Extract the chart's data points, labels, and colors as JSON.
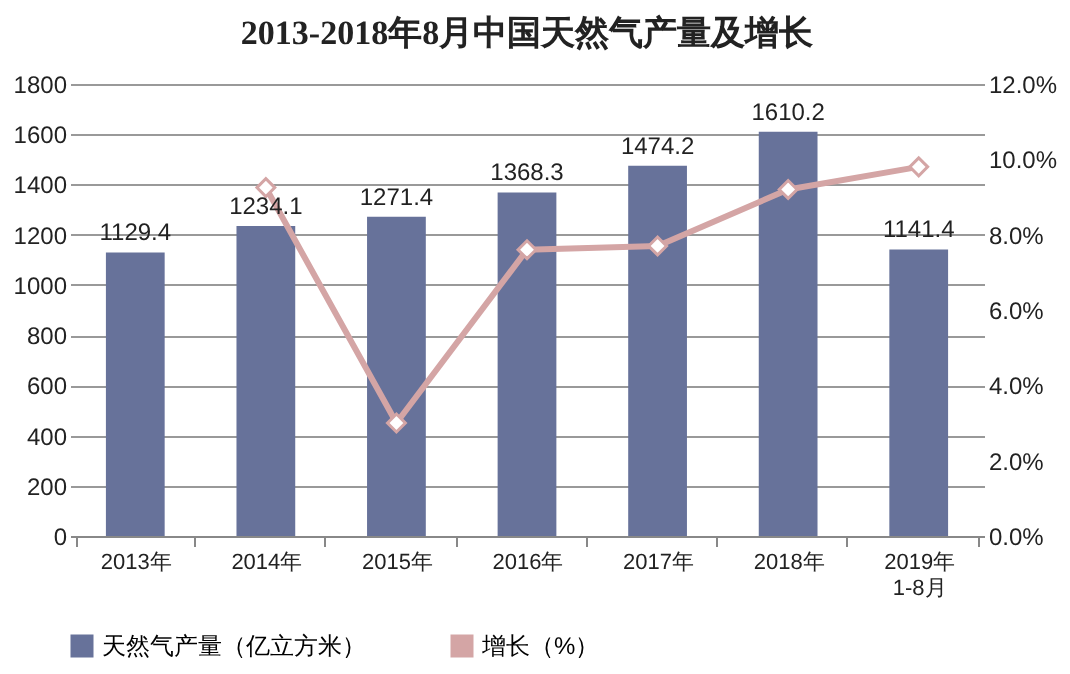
{
  "chart_data": {
    "type": "bar",
    "title": "2013-2018年8月中国天然气产量及增长",
    "categories": [
      "2013年",
      "2014年",
      "2015年",
      "2016年",
      "2017年",
      "2018年",
      "2019年\n1-8月"
    ],
    "series": [
      {
        "name": "天然气产量（亿立方米）",
        "color": "#67729a",
        "values": [
          1129.4,
          1234.1,
          1271.4,
          1368.3,
          1474.2,
          1610.2,
          1141.4
        ],
        "value_labels": [
          "1129.4",
          "1234.1",
          "1271.4",
          "1368.3",
          "1474.2",
          "1610.2",
          "1141.4"
        ]
      },
      {
        "name": "增长（%）",
        "type": "line",
        "axis": "y2",
        "color": "#d4a5a5",
        "marker": "diamond",
        "values": [
          null,
          9.25,
          3.0,
          7.6,
          7.7,
          9.2,
          9.8
        ]
      }
    ],
    "ylim": [
      0,
      1800
    ],
    "yticks": [
      0,
      200,
      400,
      600,
      800,
      1000,
      1200,
      1400,
      1600,
      1800
    ],
    "y2lim": [
      0,
      12
    ],
    "y2ticks": [
      {
        "value": 0,
        "label": "0.0%"
      },
      {
        "value": 2,
        "label": "2.0%"
      },
      {
        "value": 4,
        "label": "4.0%"
      },
      {
        "value": 6,
        "label": "6.0%"
      },
      {
        "value": 8,
        "label": "8.0%"
      },
      {
        "value": 10,
        "label": "10.0%"
      },
      {
        "value": 12,
        "label": "12.0%"
      }
    ],
    "grid": "y",
    "legend": "bottom"
  }
}
